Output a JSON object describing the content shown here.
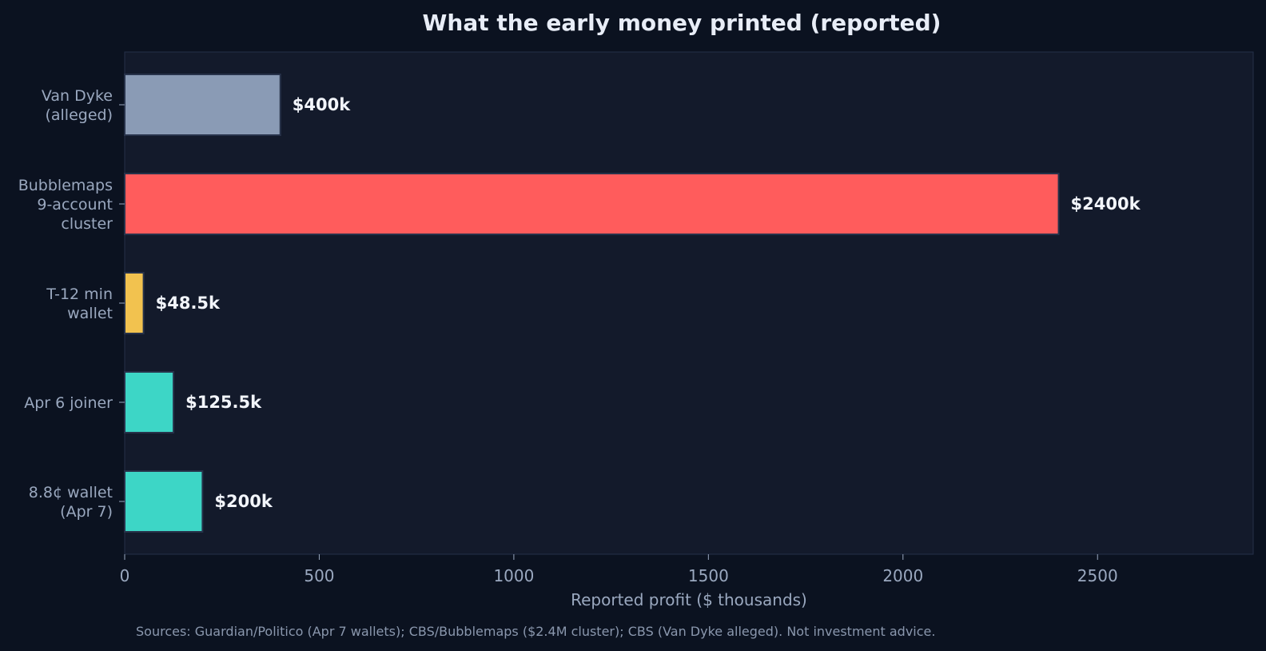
{
  "chart_data": {
    "type": "bar",
    "orientation": "horizontal",
    "title": "What the early money printed (reported)",
    "xlabel": "Reported profit ($ thousands)",
    "ylabel": "",
    "xlim": [
      0,
      2900
    ],
    "xticks": [
      0,
      500,
      1000,
      1500,
      2000,
      2500
    ],
    "grid": false,
    "categories": [
      {
        "lines": [
          "Van Dyke",
          "(alleged)"
        ],
        "value": 400,
        "label": "$400k",
        "color": "#8a9bb5"
      },
      {
        "lines": [
          "Bubblemaps",
          "9-account",
          "cluster"
        ],
        "value": 2400,
        "label": "$2400k",
        "color": "#ff5c5c"
      },
      {
        "lines": [
          "T-12 min",
          "wallet"
        ],
        "value": 48.5,
        "label": "$48.5k",
        "color": "#f2c24f"
      },
      {
        "lines": [
          "Apr 6 joiner"
        ],
        "value": 125.5,
        "label": "$125.5k",
        "color": "#3dd6c6"
      },
      {
        "lines": [
          "8.8¢ wallet",
          "(Apr 7)"
        ],
        "value": 200,
        "label": "$200k",
        "color": "#3dd6c6"
      }
    ],
    "colors": {
      "background": "#0b1220",
      "plot_background": "#131a2b",
      "bar_edge": "#27324a",
      "text": "#e8edf7",
      "muted_text": "#9aa8bf"
    }
  },
  "footer": {
    "sources": "Sources: Guardian/Politico (Apr 7 wallets); CBS/Bubblemaps ($2.4M cluster); CBS (Van Dyke alleged). Not investment advice."
  }
}
